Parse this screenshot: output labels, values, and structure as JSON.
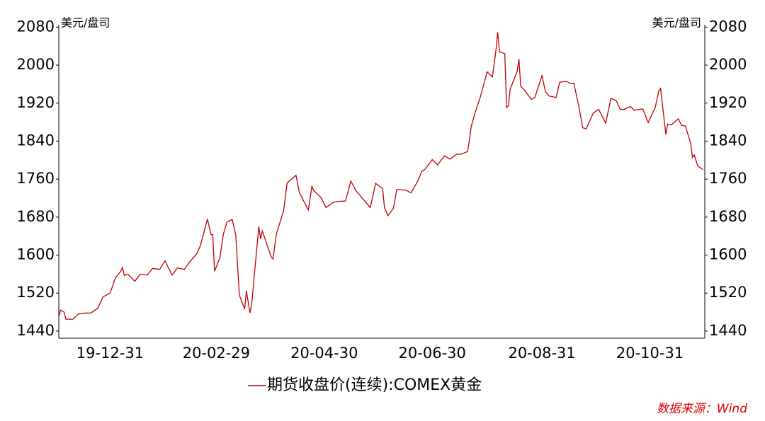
{
  "chart_data": {
    "type": "line",
    "y_label": "美元/盘司",
    "source": "数据来源：Wind",
    "x": [
      "19-12-02",
      "19-12-03",
      "19-12-05",
      "19-12-06",
      "19-12-10",
      "19-12-13",
      "19-12-17",
      "19-12-20",
      "19-12-24",
      "19-12-27",
      "19-12-31",
      "20-01-03",
      "20-01-06",
      "20-01-07",
      "20-01-08",
      "20-01-10",
      "20-01-14",
      "20-01-17",
      "20-01-21",
      "20-01-24",
      "20-01-28",
      "20-01-31",
      "20-02-04",
      "20-02-07",
      "20-02-11",
      "20-02-14",
      "20-02-18",
      "20-02-20",
      "20-02-24",
      "20-02-26",
      "20-02-27",
      "20-02-28",
      "20-03-02",
      "20-03-04",
      "20-03-06",
      "20-03-09",
      "20-03-11",
      "20-03-13",
      "20-03-16",
      "20-03-17",
      "20-03-19",
      "20-03-20",
      "20-03-24",
      "20-03-25",
      "20-03-26",
      "20-03-31",
      "20-04-01",
      "20-04-03",
      "20-04-07",
      "20-04-09",
      "20-04-14",
      "20-04-16",
      "20-04-21",
      "20-04-23",
      "20-04-24",
      "20-04-28",
      "20-05-01",
      "20-05-05",
      "20-05-08",
      "20-05-12",
      "20-05-15",
      "20-05-18",
      "20-05-21",
      "20-05-26",
      "20-05-29",
      "20-06-02",
      "20-06-03",
      "20-06-05",
      "20-06-08",
      "20-06-10",
      "20-06-15",
      "20-06-18",
      "20-06-22",
      "20-06-24",
      "20-06-26",
      "20-06-30",
      "20-07-03",
      "20-07-07",
      "20-07-10",
      "20-07-14",
      "20-07-16",
      "20-07-20",
      "20-07-21",
      "20-07-22",
      "20-07-24",
      "20-07-27",
      "20-07-28",
      "20-07-31",
      "20-08-03",
      "20-08-05",
      "20-08-06",
      "20-08-07",
      "20-08-10",
      "20-08-11",
      "20-08-12",
      "20-08-13",
      "20-08-17",
      "20-08-18",
      "20-08-19",
      "20-08-21",
      "20-08-25",
      "20-08-27",
      "20-08-31",
      "20-09-02",
      "20-09-04",
      "20-09-08",
      "20-09-10",
      "20-09-14",
      "20-09-16",
      "20-09-18",
      "20-09-21",
      "20-09-23",
      "20-09-25",
      "20-09-29",
      "20-10-02",
      "20-10-06",
      "20-10-09",
      "20-10-12",
      "20-10-14",
      "20-10-16",
      "20-10-20",
      "20-10-22",
      "20-10-27",
      "20-10-30",
      "20-11-03",
      "20-11-05",
      "20-11-06",
      "20-11-09",
      "20-11-10",
      "20-11-12",
      "20-11-16",
      "20-11-18",
      "20-11-20",
      "20-11-23",
      "20-11-24",
      "20-11-25",
      "20-11-27",
      "20-11-30"
    ],
    "series": [
      {
        "name": "期货收盘价(连续):COMEX黄金",
        "color": "#c00000",
        "values": [
          1470,
          1484,
          1480,
          1465,
          1465,
          1476,
          1478,
          1478,
          1488,
          1512,
          1520,
          1552,
          1566,
          1574,
          1557,
          1560,
          1545,
          1560,
          1558,
          1572,
          1570,
          1588,
          1558,
          1573,
          1570,
          1586,
          1603,
          1620,
          1676,
          1643,
          1643,
          1566,
          1594,
          1644,
          1670,
          1675,
          1642,
          1516,
          1486,
          1525,
          1478,
          1497,
          1660,
          1634,
          1651,
          1596,
          1592,
          1645,
          1693,
          1752,
          1768,
          1731,
          1695,
          1745,
          1736,
          1722,
          1700,
          1711,
          1713,
          1714,
          1756,
          1735,
          1722,
          1700,
          1751,
          1740,
          1700,
          1683,
          1698,
          1738,
          1737,
          1731,
          1757,
          1776,
          1781,
          1801,
          1790,
          1809,
          1802,
          1813,
          1812,
          1818,
          1842,
          1870,
          1897,
          1931,
          1944,
          1986,
          1975,
          2031,
          2069,
          2028,
          2024,
          1911,
          1914,
          1949,
          1987,
          2013,
          1955,
          1948,
          1928,
          1932,
          1978,
          1944,
          1935,
          1932,
          1964,
          1966,
          1961,
          1962,
          1910,
          1868,
          1866,
          1899,
          1907,
          1878,
          1930,
          1925,
          1908,
          1906,
          1913,
          1905,
          1908,
          1879,
          1911,
          1946,
          1951,
          1854,
          1876,
          1874,
          1887,
          1873,
          1872,
          1836,
          1806,
          1811,
          1788,
          1780
        ]
      }
    ],
    "xlim": [
      "19-12-02",
      "20-12-01"
    ],
    "xticks": [
      "19-12-31",
      "20-02-29",
      "20-04-30",
      "20-06-30",
      "20-08-31",
      "20-10-31"
    ],
    "ylim": [
      1425,
      2085
    ],
    "yticks": [
      1440,
      1520,
      1600,
      1680,
      1760,
      1840,
      1920,
      2000,
      2080
    ]
  }
}
